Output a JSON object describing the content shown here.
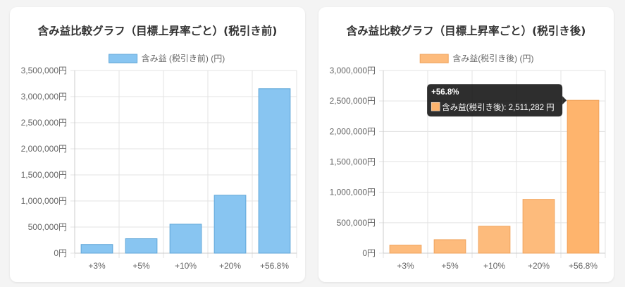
{
  "chart_data": [
    {
      "type": "bar",
      "title": "含み益比較グラフ（目標上昇率ごと）(税引き前)",
      "categories": [
        "+3%",
        "+5%",
        "+10%",
        "+20%",
        "+56.8%"
      ],
      "series": [
        {
          "name": "含み益 (税引き前) (円)",
          "values": [
            166000,
            277000,
            555000,
            1110000,
            3151512
          ],
          "color": "#88c5f1",
          "border": "#5fa6d8"
        }
      ],
      "ylim": [
        0,
        3500000
      ],
      "yticks": [
        "0円",
        "500,000円",
        "1,000,000円",
        "1,500,000円",
        "2,000,000円",
        "2,500,000円",
        "3,000,000円",
        "3,500,000円"
      ],
      "ytick_values": [
        0,
        500000,
        1000000,
        1500000,
        2000000,
        2500000,
        3000000,
        3500000
      ],
      "grid": true,
      "legend": "top"
    },
    {
      "type": "bar",
      "title": "含み益比較グラフ（目標上昇率ごと）(税引き後)",
      "categories": [
        "+3%",
        "+5%",
        "+10%",
        "+20%",
        "+56.8%"
      ],
      "series": [
        {
          "name": "含み益(税引き後) (円)",
          "values": [
            132000,
            221000,
            442000,
            884000,
            2511282
          ],
          "color": "#fdbb7c",
          "border": "#f0a35c",
          "highlight": "#feb46d"
        }
      ],
      "ylim": [
        0,
        3000000
      ],
      "yticks": [
        "0円",
        "500,000円",
        "1,000,000円",
        "1,500,000円",
        "2,000,000円",
        "2,500,000円",
        "3,000,000円"
      ],
      "ytick_values": [
        0,
        500000,
        1000000,
        1500000,
        2000000,
        2500000,
        3000000
      ],
      "grid": true,
      "legend": "top",
      "tooltip": {
        "title": "+56.8%",
        "label": "含み益(税引き後): 2,511,282 円",
        "index": 4
      }
    }
  ]
}
